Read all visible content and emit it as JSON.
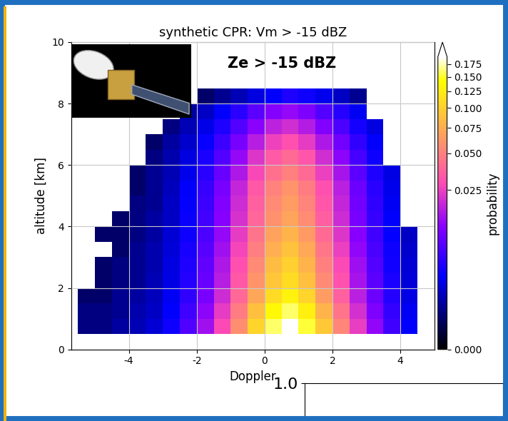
{
  "chart_data": [
    {
      "type": "heatmap",
      "title": "synthetic CPR: Vm > -15 dBZ",
      "annotations": [
        "Ze > -15 dBZ"
      ],
      "x_label": "Doppler",
      "y_label": "altitude [km]",
      "xlim": [
        -5.7,
        5.0
      ],
      "xticks": [
        -4,
        -2,
        0,
        2,
        4
      ],
      "ylim": [
        0,
        10
      ],
      "yticks": [
        0,
        2,
        4,
        6,
        8,
        10
      ],
      "grid": true,
      "x_bins": [
        -5.5,
        -5.0,
        -4.5,
        -4.0,
        -3.5,
        -3.0,
        -2.5,
        -2.0,
        -1.5,
        -1.0,
        -0.5,
        0.0,
        0.5,
        1.0,
        1.5,
        2.0,
        2.5,
        3.0,
        3.5,
        4.0,
        4.5
      ],
      "y_bins": [
        0.5,
        1.0,
        1.5,
        2.0,
        2.5,
        3.0,
        3.5,
        4.0,
        4.5,
        5.0,
        5.5,
        6.0,
        6.5,
        7.0,
        7.5,
        8.0,
        8.5
      ],
      "cells": [
        [
          0.0002,
          0.0002,
          0.0004,
          0.0006,
          0.001,
          0.0023,
          0.0057,
          0.0133,
          0.0285,
          0.057,
          0.1045,
          0.1615,
          0.19,
          0.152,
          0.095,
          0.0532,
          0.0247,
          0.0114,
          0.0048,
          0.0019
        ],
        [
          0.0002,
          0.0002,
          0.0003,
          0.0005,
          0.0008,
          0.0019,
          0.0048,
          0.0112,
          0.024,
          0.048,
          0.088,
          0.136,
          0.16,
          0.128,
          0.08,
          0.0448,
          0.0208,
          0.0096,
          0.004,
          0.0016
        ],
        [
          0.0001,
          0.0001,
          0.0003,
          0.0004,
          0.0007,
          0.0016,
          0.0039,
          0.0091,
          0.0195,
          0.039,
          0.0715,
          0.1105,
          0.13,
          0.104,
          0.065,
          0.0364,
          0.0169,
          0.0078,
          0.0033,
          0.0013
        ],
        [
          null,
          0.0001,
          0.0002,
          0.0003,
          0.0006,
          0.0013,
          0.0033,
          0.0077,
          0.0165,
          0.033,
          0.0605,
          0.0935,
          0.11,
          0.088,
          0.055,
          0.0308,
          0.0143,
          0.0066,
          0.0028,
          0.0011
        ],
        [
          null,
          0.0001,
          0.0002,
          0.0003,
          0.0005,
          0.0012,
          0.003,
          0.007,
          0.015,
          0.03,
          0.055,
          0.085,
          0.1,
          0.08,
          0.05,
          0.028,
          0.013,
          0.006,
          0.0025,
          0.001
        ],
        [
          null,
          null,
          0.0001,
          0.0003,
          0.0005,
          0.0011,
          0.0027,
          0.0063,
          0.0135,
          0.027,
          0.0495,
          0.0765,
          0.09,
          0.072,
          0.045,
          0.0252,
          0.0117,
          0.0054,
          0.0023,
          0.0009
        ],
        [
          null,
          0.0001,
          0.0001,
          0.0002,
          0.0004,
          0.001,
          0.0024,
          0.0056,
          0.012,
          0.024,
          0.044,
          0.068,
          0.08,
          0.064,
          0.04,
          0.0224,
          0.0104,
          0.0048,
          0.002,
          0.0008
        ],
        [
          null,
          null,
          0.0001,
          0.0002,
          0.0004,
          0.0008,
          0.0021,
          0.0049,
          0.0105,
          0.021,
          0.0385,
          0.0595,
          0.07,
          0.056,
          0.035,
          0.0196,
          0.0091,
          0.0042,
          0.0018,
          null
        ],
        [
          null,
          null,
          null,
          0.0002,
          0.0003,
          0.0008,
          0.002,
          0.0046,
          0.0098,
          0.0195,
          0.0358,
          0.0553,
          0.065,
          0.052,
          0.0325,
          0.0182,
          0.0085,
          0.0039,
          0.0016,
          null
        ],
        [
          null,
          null,
          null,
          0.0001,
          0.0003,
          0.0007,
          0.0018,
          0.0042,
          0.009,
          0.018,
          0.033,
          0.051,
          0.06,
          0.048,
          0.03,
          0.0168,
          0.0078,
          0.0036,
          0.0015,
          null
        ],
        [
          null,
          null,
          null,
          0.0001,
          0.0003,
          0.0006,
          0.0015,
          0.0035,
          0.0075,
          0.015,
          0.0275,
          0.0425,
          0.05,
          0.04,
          0.025,
          0.014,
          0.0065,
          0.003,
          0.0013,
          null
        ],
        [
          null,
          null,
          null,
          null,
          0.0002,
          0.0005,
          0.0012,
          0.0028,
          0.006,
          0.012,
          0.022,
          0.034,
          0.04,
          0.032,
          0.02,
          0.0112,
          0.0052,
          0.0024,
          null,
          null
        ],
        [
          null,
          null,
          null,
          null,
          0.0001,
          0.0004,
          0.0009,
          0.0021,
          0.0045,
          0.009,
          0.0165,
          0.0255,
          0.03,
          0.024,
          0.015,
          0.0084,
          0.0039,
          0.0018,
          null,
          null
        ],
        [
          null,
          null,
          null,
          null,
          null,
          0.0002,
          0.0006,
          0.0014,
          0.003,
          0.006,
          0.011,
          0.017,
          0.02,
          0.016,
          0.01,
          0.0056,
          0.0026,
          0.0012,
          null,
          null
        ],
        [
          null,
          null,
          null,
          null,
          null,
          null,
          0.0004,
          0.0008,
          0.0018,
          0.0036,
          0.0066,
          0.0102,
          0.012,
          0.0096,
          0.006,
          0.0034,
          0.0016,
          null,
          null,
          null
        ],
        [
          null,
          null,
          null,
          null,
          null,
          null,
          null,
          0.0001,
          0.0003,
          0.0006,
          0.0012,
          0.0018,
          0.003,
          0.0024,
          0.0015,
          0.0008,
          0.0003,
          null,
          null,
          null
        ]
      ],
      "colorbar_label": "probability",
      "colorbar_range": [
        0,
        0.19
      ],
      "colorbar_ticks": [
        {
          "value": 0,
          "label": "0.000"
        },
        0.025,
        {
          "value": 0.05,
          "label": "0.050"
        },
        0.075,
        {
          "value": 0.1,
          "label": "0.100"
        },
        0.125,
        {
          "value": 0.15,
          "label": "0.150"
        },
        0.175
      ]
    },
    {
      "type": "line",
      "ylim": [
        0,
        1.0
      ],
      "yticks": [
        {
          "value": 1.0,
          "label": "1.0"
        }
      ],
      "tick_labels": "y",
      "grid": true
    }
  ]
}
